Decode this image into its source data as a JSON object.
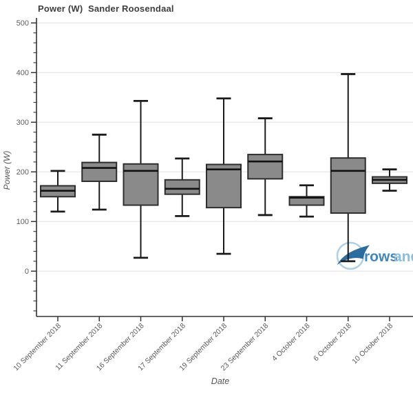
{
  "watermark": {
    "bold": "rows",
    "light": "and"
  },
  "chart_data": {
    "type": "box",
    "title": "Power (W)  Sander Roosendaal",
    "xlabel": "Date",
    "ylabel": "Power (W)",
    "ylim": [
      -91,
      510
    ],
    "y_ticks": [
      0,
      100,
      200,
      300,
      400,
      500
    ],
    "y_minor_step": 20,
    "grid": "horizontal-only",
    "legend": "none",
    "categories": [
      "10 September 2018",
      "11 September 2018",
      "16 September 2018",
      "17 September 2018",
      "19 September 2018",
      "23 September 2018",
      "4 October 2018",
      "6 October 2018",
      "10 October 2018"
    ],
    "boxes": [
      {
        "label": "10 September 2018",
        "low": 120,
        "q1": 150,
        "median": 162,
        "q3": 172,
        "high": 202
      },
      {
        "label": "11 September 2018",
        "low": 124,
        "q1": 181,
        "median": 208,
        "q3": 219,
        "high": 275
      },
      {
        "label": "16 September 2018",
        "low": 27,
        "q1": 133,
        "median": 202,
        "q3": 216,
        "high": 343
      },
      {
        "label": "17 September 2018",
        "low": 111,
        "q1": 155,
        "median": 166,
        "q3": 184,
        "high": 227
      },
      {
        "label": "19 September 2018",
        "low": 35,
        "q1": 128,
        "median": 205,
        "q3": 215,
        "high": 348
      },
      {
        "label": "23 September 2018",
        "low": 113,
        "q1": 186,
        "median": 221,
        "q3": 235,
        "high": 308
      },
      {
        "label": "4 October 2018",
        "low": 110,
        "q1": 133,
        "median": 148,
        "q3": 150,
        "high": 173
      },
      {
        "label": "6 October 2018",
        "low": 20,
        "q1": 117,
        "median": 202,
        "q3": 228,
        "high": 397
      },
      {
        "label": "10 October 2018",
        "low": 162,
        "q1": 177,
        "median": 184,
        "q3": 190,
        "high": 205
      }
    ],
    "colors": {
      "box_fill": "#8a8a8a",
      "box_edge": "#2d2d2d",
      "median": "#111111",
      "whisker": "#1a1a1a",
      "grid": "#e9e9e9",
      "axis": "#333333",
      "tick_label": "#5b5b5b",
      "axis_title": "#555555",
      "title": "#3e3e3e",
      "watermark_circle": "#abd0e8",
      "watermark_swoosh": "#2a6d9e",
      "watermark_text_bold": "#4187bb",
      "watermark_text_light": "#8abdde"
    }
  }
}
